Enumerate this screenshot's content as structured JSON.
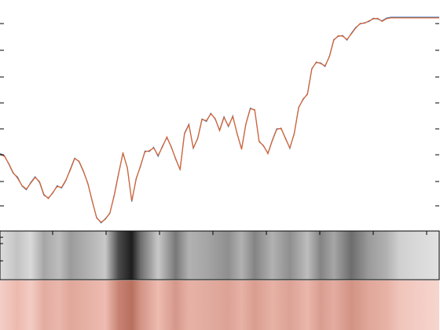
{
  "chart_data": {
    "type": "line",
    "title": "",
    "xlabel": "",
    "ylabel": "",
    "grid": false,
    "legend": "none",
    "xlim": [
      0,
      100
    ],
    "ylim": [
      0,
      100
    ],
    "x": [
      0,
      1,
      2,
      3,
      4,
      5,
      6,
      7,
      8,
      9,
      10,
      11,
      12,
      13,
      14,
      15,
      16,
      17,
      18,
      19,
      20,
      21,
      22,
      23,
      24,
      25,
      26,
      27,
      28,
      29,
      30,
      31,
      32,
      33,
      34,
      35,
      36,
      37,
      38,
      39,
      40,
      41,
      42,
      43,
      44,
      45,
      46,
      47,
      48,
      49,
      50,
      51,
      52,
      53,
      54,
      55,
      56,
      57,
      58,
      59,
      60,
      61,
      62,
      63,
      64,
      65,
      66,
      67,
      68,
      69,
      70,
      71,
      72,
      73,
      74,
      75,
      76,
      77,
      78,
      79,
      80,
      81,
      82,
      83,
      84,
      85,
      86,
      87,
      88,
      89,
      90,
      91,
      92,
      93,
      94,
      95,
      96,
      97,
      98,
      99,
      100
    ],
    "series": [
      {
        "color": "#3572b0",
        "values": [
          34.3,
          33.3,
          29.2,
          24.8,
          22.9,
          18.7,
          16.9,
          20.3,
          23.1,
          20.4,
          14.2,
          12.9,
          15.2,
          18.8,
          17.7,
          21.2,
          26.7,
          32.1,
          30.4,
          25.6,
          20.0,
          11.2,
          3.5,
          0.9,
          2.9,
          5.4,
          14.2,
          24.7,
          34.4,
          27.5,
          11.1,
          22.3,
          28.2,
          35.5,
          35.3,
          37.3,
          33.0,
          37.9,
          42.0,
          37.6,
          31.6,
          26.7,
          44.1,
          48.4,
          36.8,
          41.7,
          51.0,
          49.8,
          53.7,
          50.9,
          45.6,
          52.0,
          47.3,
          52.4,
          43.6,
          36.6,
          48.8,
          56.2,
          55.2,
          40.3,
          37.9,
          34.5,
          40.8,
          46.2,
          46.3,
          41.7,
          36.8,
          44.1,
          56.6,
          60.3,
          63.1,
          75.3,
          78.2,
          78.0,
          76.3,
          81.3,
          89.2,
          90.8,
          91.2,
          89.0,
          92.3,
          95.1,
          96.8,
          97.4,
          98.0,
          99.5,
          99.2,
          98.3,
          99.6,
          100.0,
          100.0,
          100.0,
          100.0,
          100.0,
          100.0,
          100.0,
          100.0,
          100.0,
          100.0,
          100.0,
          100.0
        ]
      },
      {
        "color": "#e0622d",
        "values": [
          33.9,
          33.0,
          29.5,
          25.1,
          22.4,
          18.9,
          17.2,
          20.0,
          22.8,
          20.8,
          14.6,
          12.6,
          15.5,
          18.4,
          18.0,
          21.5,
          26.3,
          31.8,
          30.7,
          25.9,
          19.7,
          11.6,
          3.2,
          1.2,
          2.6,
          5.7,
          13.8,
          24.3,
          34.8,
          27.2,
          11.5,
          21.9,
          28.6,
          35.1,
          35.7,
          37.0,
          33.4,
          37.5,
          42.4,
          37.3,
          31.9,
          26.4,
          43.8,
          48.1,
          37.1,
          41.4,
          50.7,
          50.2,
          53.4,
          51.2,
          45.3,
          51.7,
          47.6,
          52.1,
          43.9,
          36.3,
          48.5,
          55.9,
          55.5,
          40.0,
          38.2,
          34.2,
          40.5,
          45.9,
          46.6,
          41.4,
          37.1,
          43.8,
          56.3,
          60.6,
          62.8,
          75.0,
          78.5,
          77.7,
          76.6,
          81.0,
          88.9,
          91.1,
          90.9,
          89.3,
          92.0,
          94.8,
          97.1,
          97.1,
          98.3,
          99.2,
          99.5,
          98.0,
          99.3,
          99.7,
          99.7,
          99.7,
          99.7,
          99.7,
          99.7,
          99.7,
          99.7,
          99.7,
          99.7,
          99.7,
          99.7
        ]
      }
    ]
  },
  "strips": {
    "gray": {
      "base": "#c8c8c8",
      "light": "#e9e9e9",
      "dark": "#121212"
    },
    "rose": {
      "base": "#eebbb0",
      "light": "#f7ddd7",
      "dark": "#b56a58"
    }
  }
}
